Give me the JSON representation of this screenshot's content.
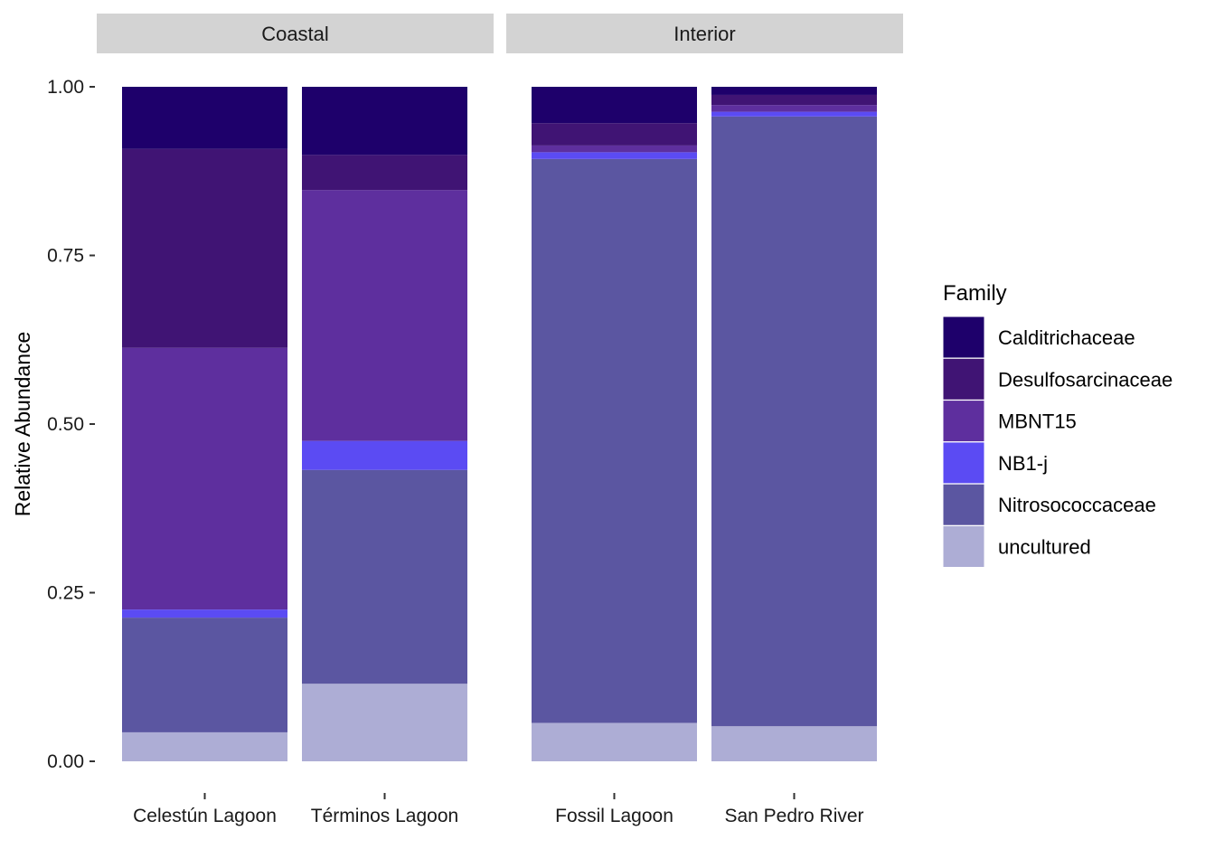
{
  "chart_data": {
    "type": "bar",
    "stacked": true,
    "ylabel": "Relative Abundance",
    "ylim": [
      0,
      1
    ],
    "y_ticks": [
      "0.00",
      "0.25",
      "0.50",
      "0.75",
      "1.00"
    ],
    "legend_title": "Family",
    "legend_position": "right",
    "facets": [
      {
        "label": "Coastal",
        "categories": [
          "Celestún Lagoon",
          "Términos Lagoon"
        ]
      },
      {
        "label": "Interior",
        "categories": [
          "Fossil Lagoon",
          "San Pedro River"
        ]
      }
    ],
    "series": [
      {
        "name": "uncultured",
        "color": "#ADADD5",
        "values": {
          "Celestún Lagoon": 0.043,
          "Términos Lagoon": 0.115,
          "Fossil Lagoon": 0.057,
          "San Pedro River": 0.052
        }
      },
      {
        "name": "Nitrosococcaceae",
        "color": "#5B56A1",
        "values": {
          "Celestún Lagoon": 0.17,
          "Términos Lagoon": 0.317,
          "Fossil Lagoon": 0.836,
          "San Pedro River": 0.904
        }
      },
      {
        "name": "NB1-j",
        "color": "#5B4BF3",
        "values": {
          "Celestún Lagoon": 0.012,
          "Términos Lagoon": 0.043,
          "Fossil Lagoon": 0.01,
          "San Pedro River": 0.007
        }
      },
      {
        "name": "MBNT15",
        "color": "#5E2F9E",
        "values": {
          "Celestún Lagoon": 0.388,
          "Términos Lagoon": 0.372,
          "Fossil Lagoon": 0.01,
          "San Pedro River": 0.01
        }
      },
      {
        "name": "Desulfosarcinaceae",
        "color": "#401474",
        "values": {
          "Celestún Lagoon": 0.295,
          "Términos Lagoon": 0.052,
          "Fossil Lagoon": 0.033,
          "San Pedro River": 0.015
        }
      },
      {
        "name": "Calditrichaceae",
        "color": "#1E006B",
        "values": {
          "Celestún Lagoon": 0.092,
          "Términos Lagoon": 0.101,
          "Fossil Lagoon": 0.054,
          "San Pedro River": 0.012
        }
      }
    ],
    "legend_order": [
      "Calditrichaceae",
      "Desulfosarcinaceae",
      "MBNT15",
      "NB1-j",
      "Nitrosococcaceae",
      "uncultured"
    ],
    "strip_color": "#D3D3D3"
  }
}
